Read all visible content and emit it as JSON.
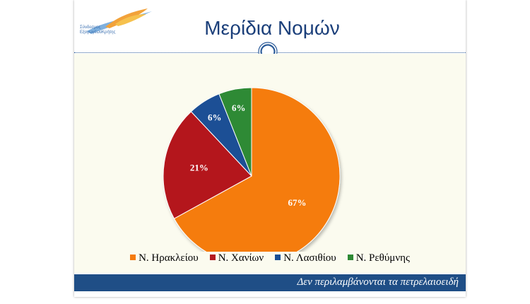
{
  "header": {
    "title": "Μερίδια Νομών",
    "logo_line1": "Σύνδεσμος",
    "logo_line2": "ΕξαγωγέωνΚρήτης"
  },
  "footer": {
    "note": "Δεν περιλαμβάνονται τα πετρελαιοειδή"
  },
  "chart_data": {
    "type": "pie",
    "categories": [
      "Ν. Ηρακλείου",
      "Ν. Χανίων",
      "Ν. Λασιθίου",
      "Ν. Ρεθύμνης"
    ],
    "values": [
      67,
      21,
      6,
      6
    ],
    "data_labels": [
      "67%",
      "21%",
      "6%",
      "6%"
    ],
    "colors": [
      "#f57b0f",
      "#b4191f",
      "#1a4f95",
      "#2e8a34"
    ],
    "start_direction": "top, clockwise",
    "legend_position": "bottom",
    "title": "Μερίδια Νομών"
  }
}
